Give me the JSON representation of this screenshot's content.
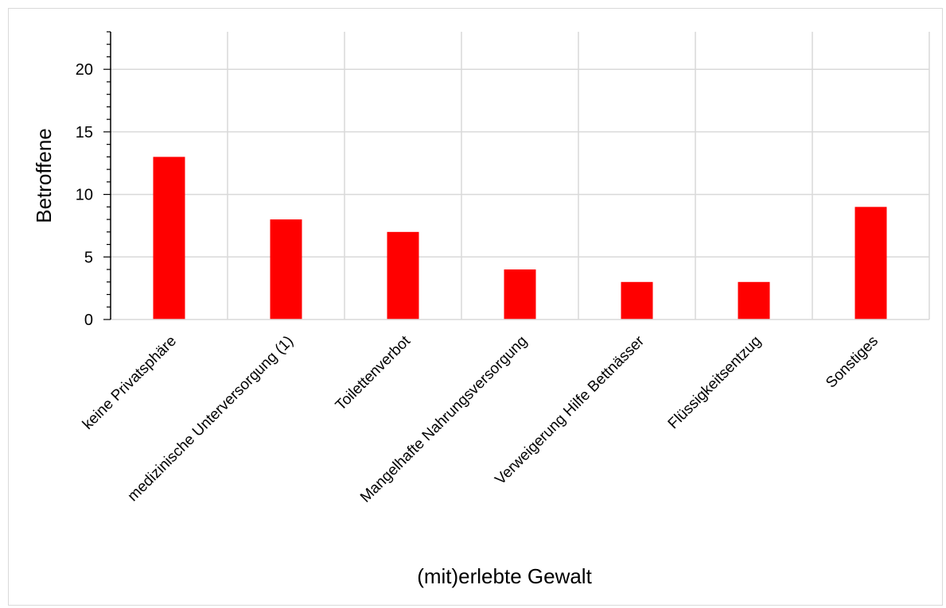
{
  "chart_data": {
    "type": "bar",
    "categories": [
      "keine Privatsphäre",
      "medizinische Unterversorgung (1)",
      "Toilettenverbot",
      "Mangelhafte Nahrungsversorgung",
      "Verweigerung Hilfe Bettnässer",
      "Flüssigkeitsentzug",
      "Sonstiges"
    ],
    "values": [
      13,
      8,
      7,
      4,
      3,
      3,
      9
    ],
    "title": "",
    "xlabel": "(mit)erlebte Gewalt",
    "ylabel": "Betroffene",
    "ylim": [
      0,
      23
    ],
    "yticks": [
      "0",
      "5",
      "10",
      "15",
      "20"
    ],
    "grid": true,
    "bar_color": "#ff0000",
    "grid_color": "#d9d9d9"
  }
}
